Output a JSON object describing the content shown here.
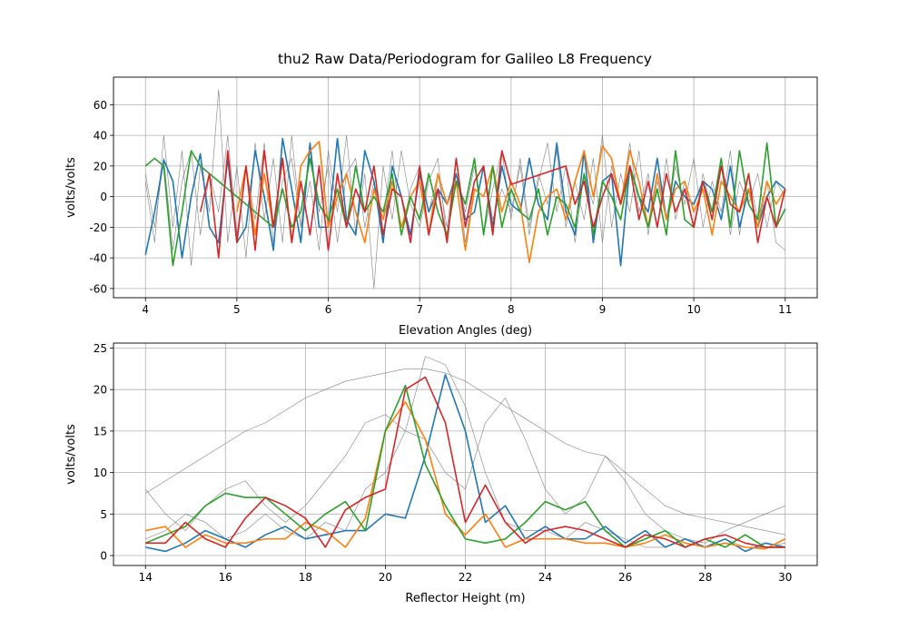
{
  "chart_data": [
    {
      "type": "line",
      "title": "thu2 Raw Data/Periodogram for Galileo L8 Frequency",
      "xlabel": "Elevation Angles (deg)",
      "ylabel": "volts/volts",
      "xlim": [
        3.65,
        11.35
      ],
      "ylim": [
        -66,
        78
      ],
      "xticks": [
        4,
        5,
        6,
        7,
        8,
        9,
        10,
        11
      ],
      "yticks": [
        -60,
        -40,
        -20,
        0,
        20,
        40,
        60
      ],
      "grid": true,
      "x": [
        4.0,
        4.1,
        4.2,
        4.3,
        4.4,
        4.5,
        4.6,
        4.7,
        4.8,
        4.9,
        5.0,
        5.1,
        5.2,
        5.3,
        5.4,
        5.5,
        5.6,
        5.7,
        5.8,
        5.9,
        6.0,
        6.1,
        6.2,
        6.3,
        6.4,
        6.5,
        6.6,
        6.7,
        6.8,
        6.9,
        7.0,
        7.1,
        7.2,
        7.3,
        7.4,
        7.5,
        7.6,
        7.7,
        7.8,
        7.9,
        8.0,
        8.1,
        8.2,
        8.3,
        8.4,
        8.5,
        8.6,
        8.7,
        8.8,
        8.9,
        9.0,
        9.1,
        9.2,
        9.3,
        9.4,
        9.5,
        9.6,
        9.7,
        9.8,
        9.9,
        10.0,
        10.1,
        10.2,
        10.3,
        10.4,
        10.5,
        10.6,
        10.7,
        10.8,
        10.9,
        11.0
      ],
      "series": [
        {
          "color": "#808080",
          "linewidth": 0.6,
          "values": [
            10,
            -30,
            40,
            -20,
            30,
            -45,
            20,
            -10,
            70,
            -30,
            20,
            -40,
            35,
            -15,
            25,
            -30,
            40,
            -20,
            10,
            -35,
            30,
            -10,
            40,
            -25,
            15,
            -60,
            20,
            -15,
            30,
            -5,
            -20,
            10,
            25,
            -30,
            15,
            -10,
            20,
            -25,
            5,
            30,
            -15,
            25,
            -20,
            10,
            35,
            -10,
            20,
            -30,
            15,
            -5,
            40,
            -20,
            15,
            -10,
            30,
            -25,
            10,
            -15,
            20,
            -5,
            25,
            -20,
            10,
            -10,
            30,
            -25,
            15,
            -15,
            10,
            -30,
            -35
          ]
        },
        {
          "color": "#808080",
          "linewidth": 0.6,
          "values": [
            15,
            -20,
            25,
            -35,
            10,
            30,
            -25,
            15,
            -10,
            40,
            -25,
            20,
            -15,
            35,
            -30,
            10,
            25,
            -20,
            30,
            -10,
            20,
            -30,
            15,
            25,
            -20,
            10,
            -15,
            30,
            -25,
            5,
            20,
            -10,
            15,
            -20,
            25,
            -30,
            10,
            20,
            -15,
            5,
            -10,
            20,
            -25,
            15,
            -5,
            30,
            -20,
            10,
            -15,
            25,
            -30,
            20,
            -5,
            35,
            -10,
            15,
            -20,
            25,
            -15,
            10,
            -20,
            15,
            -10,
            20,
            -25,
            10,
            -5,
            15,
            -20,
            10,
            0
          ]
        },
        {
          "color": "#1f77b4",
          "linewidth": 1.6,
          "values": [
            -38,
            -10,
            24,
            10,
            -40,
            0,
            28,
            -20,
            -30,
            25,
            -30,
            -20,
            30,
            0,
            -35,
            38,
            5,
            -30,
            35,
            -20,
            -20,
            38,
            -15,
            -25,
            30,
            10,
            -30,
            20,
            0,
            -25,
            15,
            -10,
            5,
            -5,
            15,
            -15,
            -10,
            20,
            -20,
            20,
            -5,
            -10,
            25,
            -5,
            -15,
            35,
            -10,
            -25,
            30,
            -30,
            10,
            15,
            -45,
            20,
            0,
            -10,
            25,
            -15,
            10,
            0,
            -5,
            10,
            5,
            -15,
            20,
            -20,
            5,
            -20,
            0,
            10,
            5
          ]
        },
        {
          "color": "#ff7f0e",
          "linewidth": 1.6,
          "values": [
            null,
            null,
            null,
            null,
            null,
            null,
            null,
            null,
            null,
            null,
            -10,
            20,
            -25,
            15,
            -20,
            25,
            -30,
            20,
            30,
            36,
            -20,
            0,
            15,
            -10,
            -30,
            5,
            -15,
            10,
            -20,
            0,
            10,
            -25,
            15,
            -5,
            10,
            -35,
            5,
            0,
            20,
            -10,
            10,
            -5,
            -43,
            -10,
            0,
            5,
            -15,
            10,
            30,
            0,
            33,
            25,
            -5,
            30,
            10,
            -20,
            15,
            -15,
            5,
            10,
            -10,
            5,
            -25,
            10,
            0,
            -10,
            5,
            -20,
            10,
            -5,
            5
          ]
        },
        {
          "color": "#2ca02c",
          "linewidth": 1.6,
          "values": [
            20,
            25,
            20,
            -45,
            -10,
            30,
            20,
            15,
            10,
            5,
            0,
            -5,
            -10,
            -15,
            -20,
            5,
            -20,
            -10,
            25,
            -5,
            -15,
            5,
            -20,
            20,
            -10,
            0,
            -10,
            15,
            -25,
            0,
            -15,
            15,
            -10,
            -25,
            10,
            -5,
            25,
            -25,
            20,
            -20,
            5,
            -10,
            -15,
            5,
            -25,
            0,
            -5,
            -20,
            15,
            -25,
            10,
            0,
            -15,
            20,
            0,
            -20,
            5,
            -25,
            30,
            -15,
            -20,
            10,
            -10,
            25,
            -20,
            30,
            -5,
            -15,
            35,
            -20,
            -8
          ]
        },
        {
          "color": "#d62728",
          "linewidth": 1.6,
          "values": [
            null,
            null,
            null,
            null,
            null,
            null,
            -10,
            15,
            -40,
            30,
            -30,
            20,
            -35,
            30,
            -20,
            25,
            -30,
            10,
            -25,
            20,
            -35,
            15,
            -20,
            5,
            -10,
            20,
            -25,
            5,
            0,
            -30,
            20,
            -25,
            5,
            -30,
            25,
            -20,
            10,
            20,
            -25,
            30,
            8,
            10,
            12,
            14,
            16,
            18,
            20,
            -5,
            10,
            -20,
            0,
            15,
            -5,
            20,
            -15,
            10,
            -20,
            15,
            -10,
            5,
            -20,
            10,
            -15,
            20,
            -5,
            -10,
            15,
            -30,
            0,
            -20,
            5
          ]
        }
      ]
    },
    {
      "type": "line",
      "xlabel": "Reflector Height (m)",
      "ylabel": "volts/volts",
      "xlim": [
        13.2,
        30.8
      ],
      "ylim": [
        -1.2,
        25.6
      ],
      "xticks": [
        14,
        16,
        18,
        20,
        22,
        24,
        26,
        28,
        30
      ],
      "yticks": [
        0,
        5,
        10,
        15,
        20,
        25
      ],
      "grid": true,
      "x": [
        14,
        14.5,
        15,
        15.5,
        16,
        16.5,
        17,
        17.5,
        18,
        18.5,
        19,
        19.5,
        20,
        20.5,
        21,
        21.5,
        22,
        22.5,
        23,
        23.5,
        24,
        24.5,
        25,
        25.5,
        26,
        26.5,
        27,
        27.5,
        28,
        28.5,
        29,
        29.5,
        30
      ],
      "series": [
        {
          "color": "#808080",
          "linewidth": 0.6,
          "values": [
            7.5,
            9,
            10.5,
            12,
            13.5,
            15,
            16,
            17.5,
            19,
            20,
            21,
            21.5,
            22,
            22.5,
            22.5,
            22,
            21,
            19.5,
            18,
            16.5,
            15,
            13.5,
            12.5,
            12,
            10,
            8,
            6,
            5,
            4.5,
            4,
            3.5,
            3,
            2.5
          ]
        },
        {
          "color": "#808080",
          "linewidth": 0.6,
          "values": [
            8,
            5,
            3,
            6,
            8,
            9,
            6,
            4,
            6,
            9,
            12,
            16,
            17,
            15,
            14,
            10,
            8,
            16,
            19,
            14,
            8,
            5,
            7,
            12,
            9,
            5,
            3,
            2,
            1.5,
            3,
            4,
            5,
            6
          ]
        },
        {
          "color": "#808080",
          "linewidth": 0.6,
          "values": [
            2,
            3,
            5,
            4,
            2,
            3,
            5,
            3,
            2,
            4,
            3,
            8,
            10,
            15,
            24,
            23,
            18,
            10,
            4,
            3,
            3,
            2,
            4,
            3,
            2,
            1,
            1,
            2,
            1,
            2,
            1,
            1,
            1.5
          ]
        },
        {
          "color": "#1f77b4",
          "linewidth": 1.6,
          "values": [
            1,
            0.5,
            1.5,
            3,
            2,
            1,
            2.5,
            3.5,
            2,
            2.5,
            3,
            3,
            5,
            4.5,
            12,
            21.8,
            15,
            4,
            6,
            2,
            3.5,
            2,
            2,
            3.5,
            1.5,
            3,
            1,
            2,
            1,
            2,
            0.5,
            1.5,
            1
          ]
        },
        {
          "color": "#ff7f0e",
          "linewidth": 1.6,
          "values": [
            3,
            3.5,
            1,
            2.5,
            1.5,
            1.5,
            2,
            2,
            4,
            3,
            1,
            4.5,
            15,
            18.5,
            14,
            5,
            2.5,
            5,
            1,
            2,
            2,
            2,
            1.5,
            1.5,
            1,
            1.5,
            2.5,
            1.5,
            1,
            1.5,
            1,
            0.8,
            2
          ]
        },
        {
          "color": "#2ca02c",
          "linewidth": 1.6,
          "values": [
            1.5,
            2.5,
            3.5,
            6,
            7.5,
            7,
            7,
            5,
            3,
            5,
            6.5,
            3,
            15,
            20.5,
            11,
            6,
            2,
            1.5,
            2,
            4,
            6.5,
            5.5,
            6.5,
            3,
            1,
            2,
            3,
            1,
            2,
            1,
            2.5,
            1,
            1
          ]
        },
        {
          "color": "#d62728",
          "linewidth": 1.6,
          "values": [
            1.5,
            1.5,
            4,
            2,
            1,
            4.5,
            7,
            6,
            4.5,
            1,
            5.5,
            7,
            8,
            20,
            21.5,
            16,
            4,
            8.5,
            4,
            1.5,
            3,
            3.5,
            3,
            2,
            1,
            2.5,
            2,
            1,
            2,
            2.5,
            1.5,
            1,
            1
          ]
        }
      ]
    }
  ]
}
